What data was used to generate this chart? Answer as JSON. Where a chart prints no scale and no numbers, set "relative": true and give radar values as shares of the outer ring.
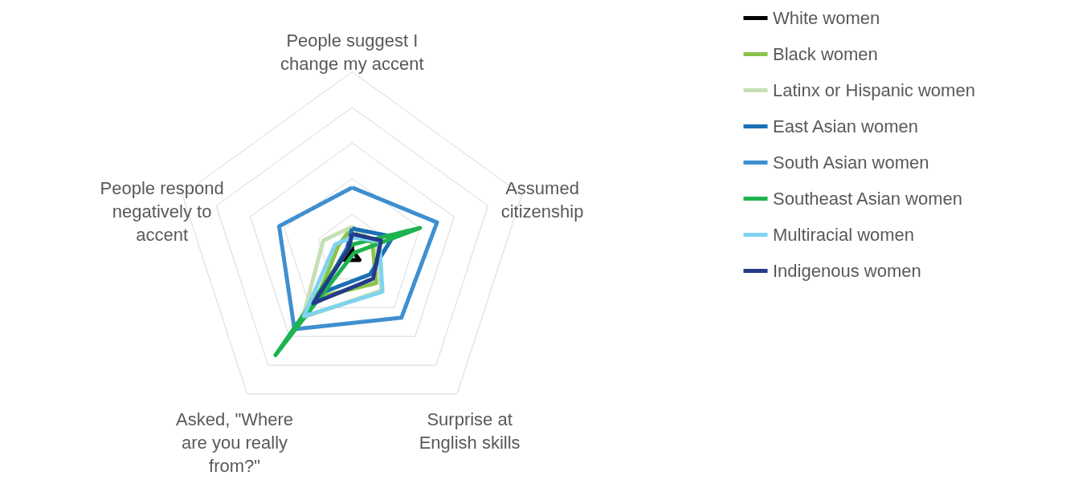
{
  "chart_data": {
    "type": "radar",
    "relative": true,
    "grid": true,
    "legend": "right",
    "marker": "none",
    "line_style": "solid",
    "categories": [
      "People suggest I change my accent",
      "Assumed citizenship",
      "Surprise at English skills",
      "Asked, \"Where are you really from?\"",
      "People respond negatively to accent"
    ],
    "series": [
      {
        "name": "White women",
        "color": "#000000",
        "values": [
          0.03,
          0.0,
          0.07,
          0.07,
          0.0
        ]
      },
      {
        "name": "Black women",
        "color": "#8bc34a",
        "values": [
          0.13,
          0.12,
          0.23,
          0.33,
          0.08
        ]
      },
      {
        "name": "Latinx or Hispanic women",
        "color": "#c5e0b4",
        "values": [
          0.13,
          0.14,
          0.28,
          0.47,
          0.17
        ]
      },
      {
        "name": "East Asian women",
        "color": "#1a6fb5",
        "values": [
          0.12,
          0.24,
          0.17,
          0.3,
          0.03
        ]
      },
      {
        "name": "South Asian women",
        "color": "#3f8fcf",
        "values": [
          0.35,
          0.5,
          0.47,
          0.55,
          0.43
        ]
      },
      {
        "name": "Southeast Asian women",
        "color": "#1db34e",
        "values": [
          0.03,
          0.4,
          0.02,
          0.73,
          0.02
        ]
      },
      {
        "name": "Multiracial women",
        "color": "#7fd3ef",
        "values": [
          0.07,
          0.16,
          0.29,
          0.46,
          0.1
        ]
      },
      {
        "name": "Indigenous women",
        "color": "#233b8a",
        "values": [
          0.09,
          0.17,
          0.2,
          0.37,
          0.02
        ]
      }
    ]
  }
}
